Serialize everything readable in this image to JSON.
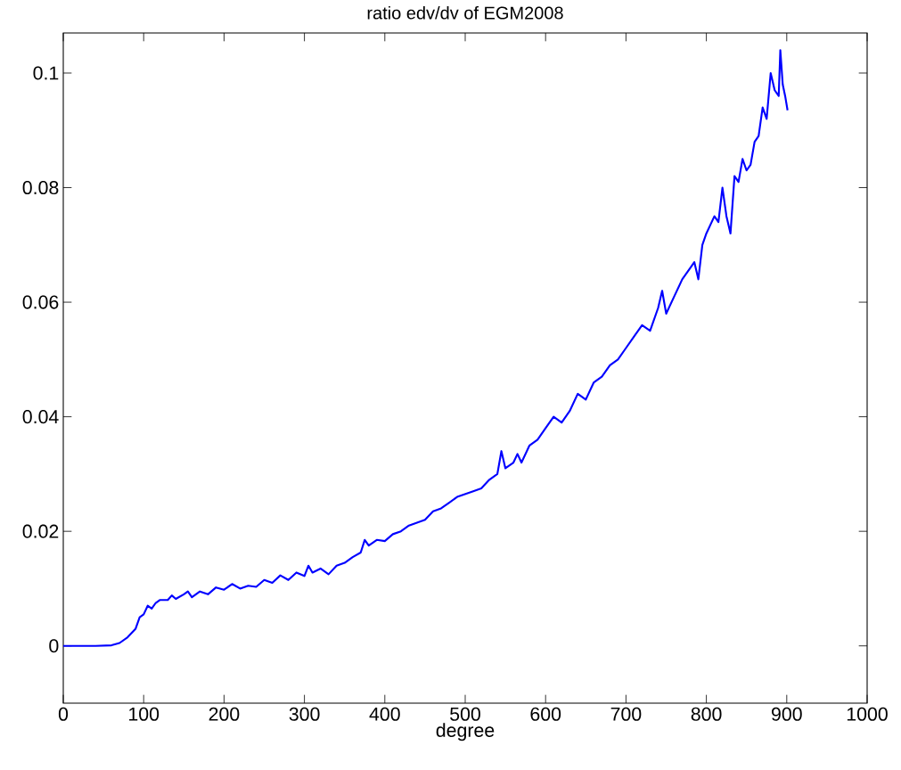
{
  "chart_data": {
    "type": "line",
    "title": "ratio edv/dv of EGM2008",
    "xlabel": "degree",
    "xlim": [
      0,
      1000
    ],
    "ylim": [
      -0.01,
      0.107
    ],
    "xticks": [
      0,
      100,
      200,
      300,
      400,
      500,
      600,
      700,
      800,
      900,
      1000
    ],
    "yticks": [
      0,
      0.02,
      0.04,
      0.06,
      0.08,
      0.1
    ],
    "grid": false,
    "marker": "none",
    "line_style": "solid",
    "series": [
      {
        "color": "#0000ff",
        "x": [
          0,
          20,
          40,
          60,
          70,
          80,
          90,
          95,
          100,
          105,
          110,
          115,
          120,
          130,
          135,
          140,
          150,
          155,
          160,
          170,
          180,
          190,
          200,
          210,
          220,
          230,
          240,
          250,
          260,
          270,
          280,
          290,
          300,
          305,
          310,
          320,
          330,
          340,
          350,
          360,
          370,
          375,
          380,
          390,
          400,
          410,
          420,
          430,
          440,
          450,
          460,
          470,
          480,
          490,
          500,
          510,
          520,
          530,
          540,
          545,
          550,
          560,
          565,
          570,
          580,
          590,
          600,
          610,
          620,
          630,
          640,
          650,
          660,
          670,
          680,
          690,
          700,
          710,
          720,
          730,
          740,
          745,
          750,
          760,
          770,
          780,
          785,
          790,
          795,
          800,
          810,
          815,
          820,
          825,
          830,
          835,
          840,
          845,
          850,
          855,
          860,
          865,
          870,
          875,
          880,
          885,
          890,
          892,
          895,
          898,
          901
        ],
        "values": [
          0,
          0,
          0,
          0.0001,
          0.0005,
          0.0015,
          0.003,
          0.005,
          0.0055,
          0.007,
          0.0065,
          0.0075,
          0.008,
          0.008,
          0.0088,
          0.0082,
          0.009,
          0.0095,
          0.0085,
          0.0095,
          0.009,
          0.0102,
          0.0098,
          0.0108,
          0.01,
          0.0105,
          0.0103,
          0.0115,
          0.011,
          0.0123,
          0.0115,
          0.0128,
          0.0122,
          0.014,
          0.0128,
          0.0135,
          0.0125,
          0.014,
          0.0145,
          0.0155,
          0.0163,
          0.0185,
          0.0175,
          0.0185,
          0.0183,
          0.0195,
          0.02,
          0.021,
          0.0215,
          0.022,
          0.0235,
          0.024,
          0.025,
          0.026,
          0.0265,
          0.027,
          0.0275,
          0.029,
          0.03,
          0.034,
          0.031,
          0.032,
          0.0335,
          0.032,
          0.035,
          0.036,
          0.038,
          0.04,
          0.039,
          0.041,
          0.044,
          0.043,
          0.046,
          0.047,
          0.049,
          0.05,
          0.052,
          0.054,
          0.056,
          0.055,
          0.059,
          0.062,
          0.058,
          0.061,
          0.064,
          0.066,
          0.067,
          0.064,
          0.07,
          0.072,
          0.075,
          0.074,
          0.08,
          0.075,
          0.072,
          0.082,
          0.081,
          0.085,
          0.083,
          0.084,
          0.088,
          0.089,
          0.094,
          0.092,
          0.1,
          0.097,
          0.096,
          0.104,
          0.098,
          0.096,
          0.0935
        ]
      }
    ]
  }
}
